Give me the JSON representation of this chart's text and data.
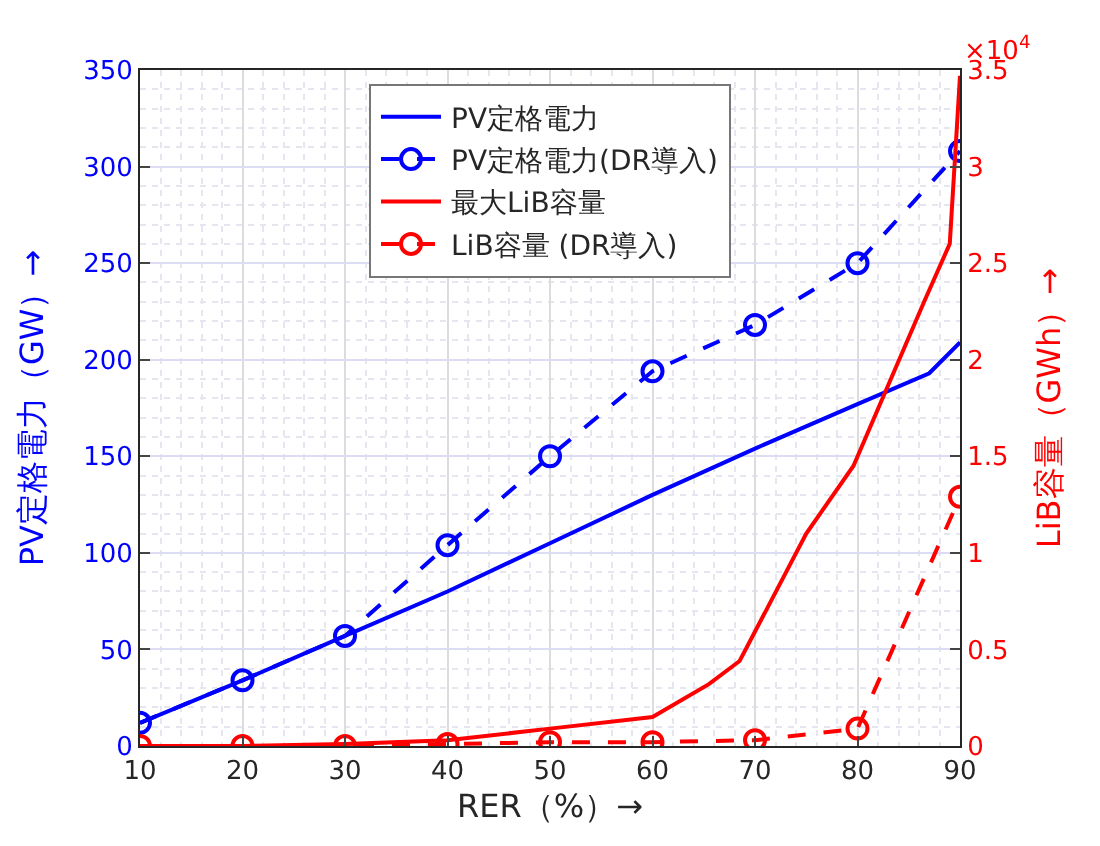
{
  "chart_data": {
    "type": "line",
    "xlabel": "RER（%）→",
    "ylabel": "PV定格電力（GW）→",
    "y2label": "LiB容量（GWh）→",
    "xlim": [
      10,
      90
    ],
    "xticks": [
      10,
      20,
      30,
      40,
      50,
      60,
      70,
      80,
      90
    ],
    "ylim": [
      0,
      350
    ],
    "yticks": [
      0,
      50,
      100,
      150,
      200,
      250,
      300,
      350
    ],
    "y2lim": [
      0,
      3.5
    ],
    "y2ticks": [
      0,
      0.5,
      1,
      1.5,
      2,
      2.5,
      3,
      3.5
    ],
    "annotations": [
      "×10$^{4}$"
    ],
    "grid": true,
    "legend": "top",
    "series": [
      {
        "name": "PV定格電力",
        "color": "#0000ff",
        "line_style": "solid",
        "marker": "none",
        "x": [
          10,
          20,
          30,
          40,
          50,
          60,
          70,
          80,
          87,
          90
        ],
        "values": [
          12,
          34,
          57,
          80,
          105,
          130,
          154,
          177,
          193,
          209
        ]
      },
      {
        "name": "PV定格電力(DR導入)",
        "color": "#0000ff",
        "line_style": "dashed",
        "marker": "circle",
        "x": [
          10,
          20,
          30,
          40,
          50,
          60,
          70,
          80,
          90
        ],
        "values": [
          12,
          34,
          57,
          104,
          150,
          194,
          218,
          250,
          308
        ]
      },
      {
        "name": "最大LiB容量",
        "color": "#ff0000",
        "axis": "y2",
        "line_style": "solid",
        "marker": "none",
        "x": [
          10,
          20,
          30,
          40,
          50,
          60,
          65.5,
          68.5,
          75,
          79.6,
          86.5,
          89,
          90
        ],
        "values": [
          0,
          0,
          0.01,
          0.03,
          0.09,
          0.15,
          0.32,
          0.44,
          1.1,
          1.45,
          2.3,
          2.6,
          3.47
        ]
      },
      {
        "name": "LiB容量 (DR導入)",
        "color": "#ff0000",
        "axis": "y2",
        "line_style": "dashed",
        "marker": "circle",
        "x": [
          10,
          20,
          30,
          40,
          50,
          60,
          70,
          80,
          90
        ],
        "values": [
          0,
          0,
          0,
          0.01,
          0.02,
          0.02,
          0.03,
          0.09,
          1.29
        ]
      }
    ]
  }
}
